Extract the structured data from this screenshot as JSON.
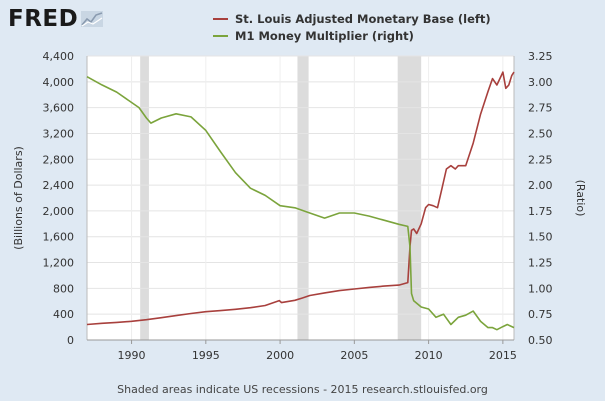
{
  "header": {
    "logo_text": "FRED",
    "logo_icon": "chart-line-icon"
  },
  "footer": {
    "note": "Shaded areas indicate US recessions - 2015 research.stlouisfed.org"
  },
  "colors": {
    "base": "#a8403d",
    "multiplier": "#7ba43c",
    "recession": "#dcdcdc",
    "plot_bg": "#ffffff",
    "page_bg": "#dfe9f3"
  },
  "chart_data": {
    "type": "line",
    "title": "",
    "xlabel": "",
    "ylabel": "(Billions of Dollars)",
    "y2label": "(Ratio)",
    "xlim": [
      1987,
      2015.75
    ],
    "ylim": [
      0,
      4400
    ],
    "y2lim": [
      0.5,
      3.25
    ],
    "x_ticks": [
      1990,
      1995,
      2000,
      2005,
      2010,
      2015
    ],
    "x_tick_labels": [
      "1990",
      "1995",
      "2000",
      "2005",
      "2010",
      "2015"
    ],
    "y_ticks": [
      0,
      400,
      800,
      1200,
      1600,
      2000,
      2400,
      2800,
      3200,
      3600,
      4000,
      4400
    ],
    "y_tick_labels": [
      "0",
      "400",
      "800",
      "1,200",
      "1,600",
      "2,000",
      "2,400",
      "2,800",
      "3,200",
      "3,600",
      "4,000",
      "4,400"
    ],
    "y2_ticks": [
      0.5,
      0.75,
      1.0,
      1.25,
      1.5,
      1.75,
      2.0,
      2.25,
      2.5,
      2.75,
      3.0,
      3.25
    ],
    "y2_tick_labels": [
      "0.50",
      "0.75",
      "1.00",
      "1.25",
      "1.50",
      "1.75",
      "2.00",
      "2.25",
      "2.50",
      "2.75",
      "3.00",
      "3.25"
    ],
    "recessions": [
      [
        1990.58,
        1991.17
      ],
      [
        2001.17,
        2001.92
      ],
      [
        2007.92,
        2009.5
      ]
    ],
    "series": [
      {
        "name": "St. Louis Adjusted Monetary Base (left)",
        "axis": "left",
        "x": [
          1987,
          1988,
          1989,
          1990,
          1991,
          1992,
          1993,
          1994,
          1995,
          1996,
          1997,
          1998,
          1999,
          1999.95,
          2000.1,
          2001,
          2001.5,
          2002,
          2003,
          2004,
          2005,
          2006,
          2007,
          2008,
          2008.6,
          2008.75,
          2008.85,
          2009,
          2009.2,
          2009.5,
          2009.8,
          2010,
          2010.3,
          2010.6,
          2010.9,
          2011.2,
          2011.5,
          2011.8,
          2012,
          2012.5,
          2013,
          2013.5,
          2014,
          2014.3,
          2014.6,
          2014.9,
          2015,
          2015.2,
          2015.4,
          2015.6,
          2015.75
        ],
        "values": [
          240,
          258,
          272,
          290,
          315,
          345,
          378,
          410,
          438,
          455,
          475,
          500,
          535,
          610,
          580,
          615,
          650,
          690,
          730,
          765,
          790,
          815,
          835,
          850,
          890,
          1450,
          1700,
          1720,
          1650,
          1800,
          2050,
          2100,
          2080,
          2050,
          2350,
          2650,
          2700,
          2650,
          2700,
          2700,
          3050,
          3500,
          3850,
          4050,
          3950,
          4100,
          4150,
          3900,
          3950,
          4100,
          4150
        ]
      },
      {
        "name": "M1 Money Multiplier (right)",
        "axis": "right",
        "x": [
          1987,
          1988,
          1989,
          1990,
          1990.5,
          1991,
          1991.3,
          1992,
          1993,
          1994,
          1995,
          1996,
          1997,
          1998,
          1999,
          2000,
          2001,
          2002,
          2003,
          2004,
          2005,
          2006,
          2007,
          2008,
          2008.6,
          2008.75,
          2008.85,
          2009,
          2009.5,
          2010,
          2010.5,
          2011,
          2011.5,
          2012,
          2012.5,
          2013,
          2013.5,
          2014,
          2014.3,
          2014.6,
          2015,
          2015.3,
          2015.75
        ],
        "values": [
          3.05,
          2.97,
          2.9,
          2.8,
          2.75,
          2.65,
          2.6,
          2.65,
          2.69,
          2.66,
          2.53,
          2.32,
          2.12,
          1.97,
          1.9,
          1.8,
          1.78,
          1.73,
          1.68,
          1.73,
          1.73,
          1.7,
          1.66,
          1.62,
          1.6,
          1.4,
          0.95,
          0.88,
          0.82,
          0.8,
          0.72,
          0.75,
          0.65,
          0.72,
          0.74,
          0.78,
          0.68,
          0.62,
          0.62,
          0.6,
          0.63,
          0.65,
          0.62
        ]
      }
    ]
  }
}
